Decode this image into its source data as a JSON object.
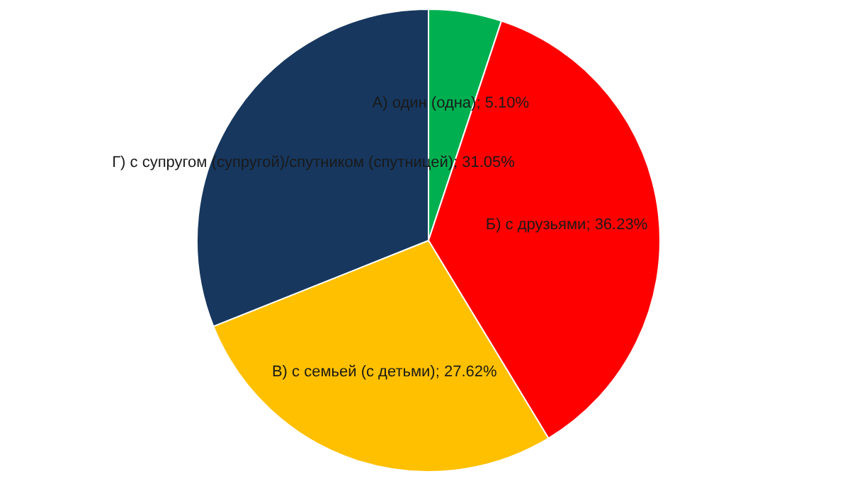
{
  "chart_data": {
    "type": "pie",
    "categories": [
      "А) один (одна)",
      "Б) с друзьями",
      "В) с семьей (с детьми)",
      "Г) с супругом (супругой)/спутником (спутницей)"
    ],
    "values": [
      5.1,
      36.23,
      27.62,
      31.05
    ],
    "colors": [
      "#00b050",
      "#ff0000",
      "#ffc000",
      "#17375e"
    ],
    "value_labels": [
      "5.10%",
      "36.23%",
      "27.62%",
      "31.05%"
    ],
    "legend": false
  }
}
